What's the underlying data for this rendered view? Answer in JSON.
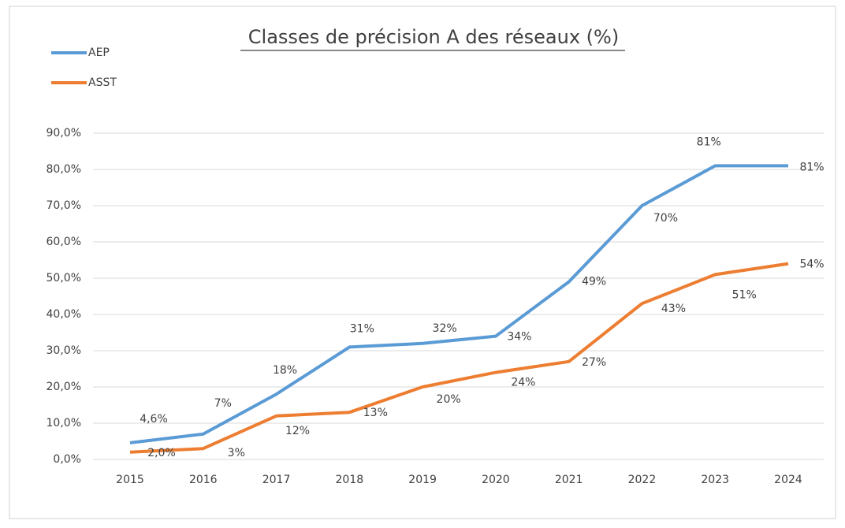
{
  "chart_data": {
    "type": "line",
    "title": "Classes de précision A des réseaux (%)",
    "categories": [
      "2015",
      "2016",
      "2017",
      "2018",
      "2019",
      "2020",
      "2021",
      "2022",
      "2023",
      "2024"
    ],
    "series": [
      {
        "name": "AEP",
        "color": "#5b9bd5",
        "values": [
          4.6,
          7,
          18,
          31,
          32,
          34,
          49,
          70,
          81,
          81
        ],
        "value_labels": [
          "4,6%",
          "7%",
          "18%",
          "31%",
          "32%",
          "34%",
          "49%",
          "70%",
          "81%",
          "81%"
        ]
      },
      {
        "name": "ASST",
        "color": "#ed7d31",
        "values": [
          2.0,
          3,
          12,
          13,
          20,
          24,
          27,
          43,
          51,
          54
        ],
        "value_labels": [
          "2,0%",
          "3%",
          "12%",
          "13%",
          "20%",
          "24%",
          "27%",
          "43%",
          "51%",
          "54%"
        ]
      }
    ],
    "ylim": [
      0,
      90
    ],
    "yticks": [
      {
        "value": 0,
        "label": "0,0%"
      },
      {
        "value": 10,
        "label": "10,0%"
      },
      {
        "value": 20,
        "label": "20,0%"
      },
      {
        "value": 30,
        "label": "30,0%"
      },
      {
        "value": 40,
        "label": "40,0%"
      },
      {
        "value": 50,
        "label": "50,0%"
      },
      {
        "value": 60,
        "label": "60,0%"
      },
      {
        "value": 70,
        "label": "70,0%"
      },
      {
        "value": 80,
        "label": "80,0%"
      },
      {
        "value": 90,
        "label": "90,0%"
      }
    ],
    "grid": true,
    "legend": "top-left"
  }
}
